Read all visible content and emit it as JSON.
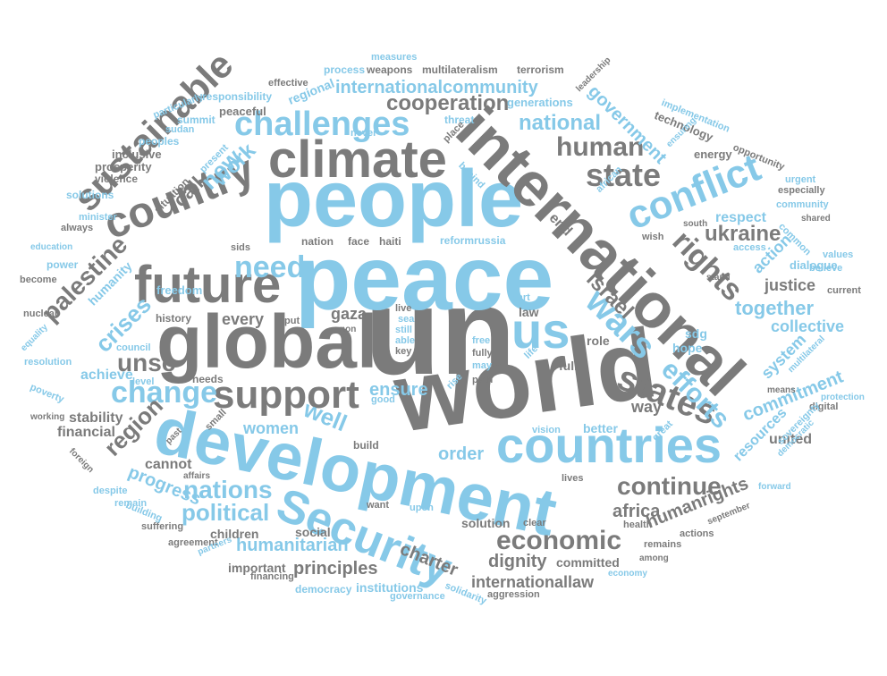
{
  "colors": {
    "gray": "#7b7b7b",
    "blue": "#86c9e8",
    "dark": "#555555",
    "background": "#ffffff"
  },
  "words": {
    "un": "un",
    "peace": "peace",
    "people": "people",
    "world": "world",
    "development": "development",
    "international": "international",
    "global": "global",
    "climate": "climate",
    "future": "future",
    "country": "country",
    "sustainable": "sustainable",
    "countries": "countries",
    "security": "Security",
    "us": "us",
    "support": "support",
    "conflict": "conflict",
    "challenges": "challenges",
    "states": "states",
    "wars": "wars",
    "change": "change",
    "rights": "rights",
    "state": "state",
    "need": "need",
    "new": "new",
    "human": "human",
    "efforts": "efforts",
    "economic": "economic",
    "nations": "nations",
    "political": "political",
    "continue": "continue",
    "cooperation": "cooperation",
    "palestine": "palestine",
    "region": "region",
    "unsc": "unsc",
    "crises": "crises",
    "israel": "israel",
    "ukraine": "ukraine",
    "together": "together",
    "commitment": "commitment",
    "government": "government",
    "national": "national",
    "international_community": "internationalcommunity",
    "well": "well",
    "women": "women",
    "humanitarian": "humanitarian",
    "charter": "charter",
    "principles": "principles",
    "dignity": "dignity",
    "africa": "africa",
    "human_rights": "humanrights",
    "international_law": "internationallaw",
    "work": "work",
    "call": "call",
    "ensure": "ensure",
    "order": "order",
    "progress": "progress",
    "gaza": "gaza",
    "system": "system",
    "collective": "collective",
    "justice": "justice",
    "respect": "respect",
    "action": "action",
    "end": "end",
    "every": "every",
    "achieve": "achieve",
    "resources": "resources",
    "way": "way",
    "stability": "stability",
    "financial": "financial",
    "united": "united",
    "better": "better",
    "hope": "hope",
    "sdg": "sdg",
    "role": "role",
    "full": "full",
    "law": "law",
    "social": "social",
    "children": "children",
    "solution": "solution",
    "committed": "committed",
    "important": "important",
    "institutions": "institutions",
    "democracy": "democracy",
    "cannot": "cannot",
    "build": "build",
    "reform_russia": "reformrussia",
    "haiti": "haiti",
    "face": "face",
    "nation": "nation",
    "sids": "sids",
    "freedom": "freedom",
    "humanity": "humanity",
    "history": "history",
    "dialogue": "dialogue",
    "believe": "believe",
    "current": "current",
    "energy": "energy",
    "technology": "technology",
    "inclusive": "inclusive",
    "prosperity": "prosperity",
    "violence": "violence",
    "solutions": "solutions",
    "peoples": "peoples",
    "peaceful": "peaceful",
    "regional": "regional",
    "responsibility": "responsibility",
    "generations": "generations",
    "multilateralism": "multilateralism",
    "weapons": "weapons",
    "process": "process",
    "terrorism": "terrorism",
    "measures": "measures",
    "effective": "effective",
    "leadership": "leadership",
    "threat": "threat",
    "summit": "summit",
    "particularly": "particularly",
    "sudan": "sudan",
    "present": "present",
    "situation": "situation",
    "always": "always",
    "minister": "minister",
    "education": "education",
    "power": "power",
    "become": "become",
    "nuclear": "nuclear",
    "equality": "equality",
    "resolution": "resolution",
    "council": "council",
    "level": "level",
    "poverty": "poverty",
    "working": "working",
    "foreign": "foreign",
    "despite": "despite",
    "suffering": "suffering",
    "agreement": "agreement",
    "partners": "partners",
    "remain": "remain",
    "building": "building",
    "financing": "financing",
    "governance": "governance",
    "solidarity": "solidarity",
    "aggression": "aggression",
    "economy": "economy",
    "among": "among",
    "remains": "remains",
    "actions": "actions",
    "september": "september",
    "health": "health",
    "clear": "clear",
    "upon": "upon",
    "want": "want",
    "lives": "lives",
    "digital": "digital",
    "means": "means",
    "protection": "protection",
    "multilateral": "multilateral",
    "sovereignty": "sovereignty",
    "democratic": "democratic",
    "forward": "forward",
    "great": "great",
    "values": "values",
    "access": "access",
    "stand": "stand",
    "wish": "wish",
    "south": "south",
    "shared": "shared",
    "common": "common",
    "especially": "especially",
    "urgent": "urgent",
    "opportunity": "opportunity",
    "implementation": "implementation",
    "ensuring": "ensuring",
    "african": "african",
    "behind": "behind",
    "place": "place",
    "never": "never",
    "still": "still",
    "sea": "sea",
    "live": "live",
    "able": "able",
    "key": "key",
    "non": "non",
    "put": "put",
    "free": "free",
    "fully": "fully",
    "may": "may",
    "life": "life",
    "path": "path",
    "rise": "rise",
    "good": "good",
    "vision": "vision",
    "needs": "needs",
    "small": "small",
    "past": "past",
    "affairs": "affairs",
    "part": "part",
    "community": "community"
  }
}
